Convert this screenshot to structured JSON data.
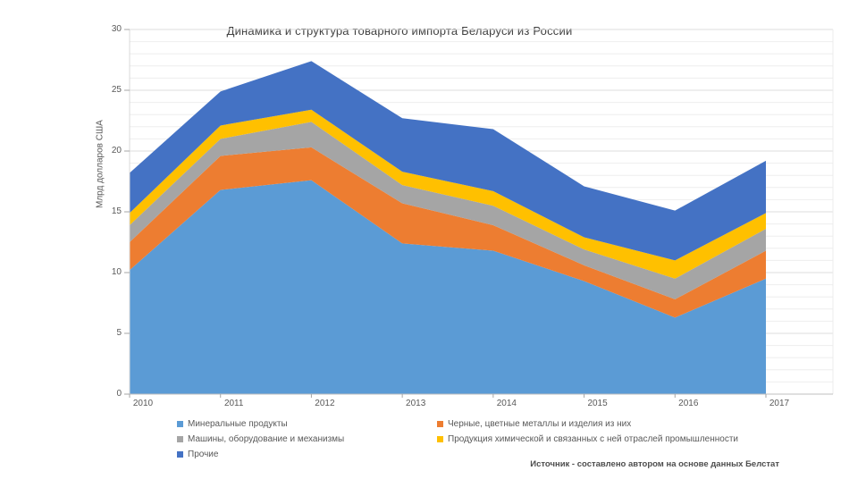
{
  "title": "Динамика и структура товарного импорта Беларуси из России",
  "y_axis_label": "Млрд долларов США",
  "source_note": "Источник - составлено автором на основе данных Белстат",
  "chart_data": {
    "type": "area",
    "stacked": true,
    "title": "Динамика и структура товарного импорта Беларуси из России",
    "x_labels": [
      "2010",
      "2011",
      "2012",
      "2013",
      "2014",
      "2015",
      "2016",
      "2017"
    ],
    "ylabel": "Млрд долларов США",
    "ylim": [
      0,
      30
    ],
    "y_ticks": [
      0,
      5,
      10,
      15,
      20,
      25,
      30
    ],
    "grid": "horizontal, faint line every 1 unit",
    "legend_position": "bottom, two columns",
    "series": [
      {
        "id": "mineral",
        "name": "Минеральные продукты",
        "color": "#5B9BD5",
        "values": [
          10.2,
          16.8,
          17.6,
          12.4,
          11.8,
          9.3,
          6.3,
          9.5
        ]
      },
      {
        "id": "metals",
        "name": "Черные, цветные металлы и изделия из них",
        "color": "#ED7D31",
        "values": [
          2.3,
          2.8,
          2.7,
          3.3,
          2.1,
          1.3,
          1.5,
          2.3
        ]
      },
      {
        "id": "machinery",
        "name": "Машины, оборудование и механизмы",
        "color": "#A5A5A5",
        "values": [
          1.4,
          1.4,
          2.1,
          1.5,
          1.6,
          1.3,
          1.7,
          1.8
        ]
      },
      {
        "id": "chemical",
        "name": "Продукция химической и связанных с ней отраслей промышленности",
        "color": "#FFC000",
        "values": [
          1.0,
          1.1,
          1.0,
          1.1,
          1.2,
          1.0,
          1.5,
          1.3
        ]
      },
      {
        "id": "other",
        "name": "Прочие",
        "color": "#4472C4",
        "values": [
          3.3,
          2.8,
          4.0,
          4.4,
          5.1,
          4.2,
          4.1,
          4.3
        ]
      }
    ],
    "stacked_totals": [
      18.2,
      24.9,
      27.4,
      22.7,
      21.8,
      17.1,
      15.1,
      19.2
    ]
  }
}
